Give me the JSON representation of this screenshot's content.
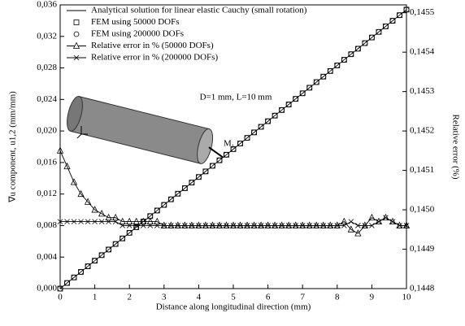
{
  "chart_data": {
    "type": "line",
    "x_label": "Distance along longitudinal direction (mm)",
    "y_label": "∇u component, u1,2 (mm/mm)",
    "y2_label": "Relative error (%)",
    "annotations": [
      "D=1 mm, L=10 mm",
      "M₁"
    ],
    "x": [
      0,
      0.2,
      0.4,
      0.6,
      0.8,
      1,
      1.2,
      1.4,
      1.6,
      1.8,
      2,
      2.2,
      2.4,
      2.6,
      2.8,
      3,
      3.2,
      3.4,
      3.6,
      3.8,
      4,
      4.2,
      4.4,
      4.6,
      4.8,
      5,
      5.2,
      5.4,
      5.6,
      5.8,
      6,
      6.2,
      6.4,
      6.6,
      6.8,
      7,
      7.2,
      7.4,
      7.6,
      7.8,
      8,
      8.2,
      8.4,
      8.6,
      8.8,
      9,
      9.2,
      9.4,
      9.6,
      9.8,
      10
    ],
    "series": [
      {
        "name": "Analytical solution for linear elastic Cauchy (small rotation)",
        "color": "#000000",
        "line": true,
        "marker": "none",
        "values": [
          0,
          0.00071,
          0.00142,
          0.00212,
          0.00283,
          0.00354,
          0.00425,
          0.00496,
          0.00566,
          0.00637,
          0.00708,
          0.00779,
          0.0085,
          0.0092,
          0.00991,
          0.01062,
          0.01133,
          0.01204,
          0.01274,
          0.01345,
          0.01416,
          0.01487,
          0.01558,
          0.01628,
          0.01699,
          0.0177,
          0.01841,
          0.01912,
          0.01982,
          0.02053,
          0.02124,
          0.02195,
          0.02266,
          0.02336,
          0.02407,
          0.02478,
          0.02549,
          0.0262,
          0.0269,
          0.02761,
          0.02832,
          0.02903,
          0.02974,
          0.03044,
          0.03115,
          0.03186,
          0.03257,
          0.03328,
          0.03398,
          0.03469,
          0.0354
        ]
      },
      {
        "name": "FEM using 50000 DOFs",
        "color": "#000000",
        "line": false,
        "marker": "square",
        "values": [
          0,
          0.00071,
          0.00142,
          0.00212,
          0.00283,
          0.00354,
          0.00425,
          0.00496,
          0.00566,
          0.00637,
          0.00708,
          0.00779,
          0.0085,
          0.0092,
          0.00991,
          0.01062,
          0.01133,
          0.01204,
          0.01274,
          0.01345,
          0.01416,
          0.01487,
          0.01558,
          0.01628,
          0.01699,
          0.0177,
          0.01841,
          0.01912,
          0.01982,
          0.02053,
          0.02124,
          0.02195,
          0.02266,
          0.02336,
          0.02407,
          0.02478,
          0.02549,
          0.0262,
          0.0269,
          0.02761,
          0.02832,
          0.02903,
          0.02974,
          0.03044,
          0.03115,
          0.03186,
          0.03257,
          0.03328,
          0.03398,
          0.03469,
          0.0354
        ]
      },
      {
        "name": "FEM using 200000 DOFs",
        "color": "#000000",
        "line": false,
        "marker": "circle",
        "values": [
          0,
          0.00071,
          0.00142,
          0.00212,
          0.00283,
          0.00354,
          0.00425,
          0.00496,
          0.00566,
          0.00637,
          0.00708,
          0.00779,
          0.0085,
          0.0092,
          0.00991,
          0.01062,
          0.01133,
          0.01204,
          0.01274,
          0.01345,
          0.01416,
          0.01487,
          0.01558,
          0.01628,
          0.01699,
          0.0177,
          0.01841,
          0.01912,
          0.01982,
          0.02053,
          0.02124,
          0.02195,
          0.02266,
          0.02336,
          0.02407,
          0.02478,
          0.02549,
          0.0262,
          0.0269,
          0.02761,
          0.02832,
          0.02903,
          0.02974,
          0.03044,
          0.03115,
          0.03186,
          0.03257,
          0.03328,
          0.03398,
          0.03469,
          0.0354
        ]
      },
      {
        "name": "Relative error in % (50000 DOFs)",
        "color": "#000000",
        "line": true,
        "marker": "triangle",
        "axis": "y2",
        "values": [
          0.14515,
          0.14511,
          0.14507,
          0.14504,
          0.14502,
          0.145,
          0.14499,
          0.14498,
          0.14498,
          0.14497,
          0.14497,
          0.14497,
          0.14497,
          0.14497,
          0.14497,
          0.14496,
          0.14496,
          0.14496,
          0.14496,
          0.14496,
          0.14496,
          0.14496,
          0.14496,
          0.14496,
          0.14496,
          0.14496,
          0.14496,
          0.14496,
          0.14496,
          0.14496,
          0.14496,
          0.14496,
          0.14496,
          0.14496,
          0.14496,
          0.14496,
          0.14496,
          0.14496,
          0.14496,
          0.14496,
          0.14496,
          0.14497,
          0.14495,
          0.14494,
          0.14496,
          0.14498,
          0.14497,
          0.14498,
          0.14497,
          0.14496,
          0.14496
        ]
      },
      {
        "name": "Relative error in % (200000 DOFs)",
        "color": "#000000",
        "line": true,
        "marker": "cross",
        "axis": "y2",
        "values": [
          0.14497,
          0.14497,
          0.14497,
          0.14497,
          0.14497,
          0.14497,
          0.14497,
          0.14497,
          0.14497,
          0.14496,
          0.14496,
          0.14496,
          0.14496,
          0.14496,
          0.14496,
          0.14496,
          0.14496,
          0.14496,
          0.14496,
          0.14496,
          0.14496,
          0.14496,
          0.14496,
          0.14496,
          0.14496,
          0.14496,
          0.14496,
          0.14496,
          0.14496,
          0.14496,
          0.14496,
          0.14496,
          0.14496,
          0.14496,
          0.14496,
          0.14496,
          0.14496,
          0.14496,
          0.14496,
          0.14496,
          0.14496,
          0.14496,
          0.14497,
          0.14496,
          0.14496,
          0.14496,
          0.14497,
          0.14498,
          0.14497,
          0.14496,
          0.14496
        ]
      }
    ],
    "xlim": [
      0,
      10
    ],
    "xticks": [
      0,
      1,
      2,
      3,
      4,
      5,
      6,
      7,
      8,
      9,
      10
    ],
    "ylim": [
      0,
      0.036
    ],
    "yticks": [
      {
        "value": 0,
        "label": "0,000"
      },
      {
        "value": 0.004,
        "label": "0,004"
      },
      {
        "value": 0.008,
        "label": "0,008"
      },
      {
        "value": 0.012,
        "label": "0,012"
      },
      {
        "value": 0.016,
        "label": "0,016"
      },
      {
        "value": 0.02,
        "label": "0,020"
      },
      {
        "value": 0.024,
        "label": "0,024"
      },
      {
        "value": 0.028,
        "label": "0,028"
      },
      {
        "value": 0.032,
        "label": "0,032"
      },
      {
        "value": 0.036,
        "label": "0,036"
      }
    ],
    "y2lim": [
      0.1448,
      0.14552
    ],
    "y2ticks": [
      {
        "value": 0.1448,
        "label": "0,1448"
      },
      {
        "value": 0.1449,
        "label": "0,1449"
      },
      {
        "value": 0.145,
        "label": "0,1450"
      },
      {
        "value": 0.1451,
        "label": "0,1451"
      },
      {
        "value": 0.1452,
        "label": "0,1452"
      },
      {
        "value": 0.1453,
        "label": "0,1453"
      },
      {
        "value": 0.1454,
        "label": "0,1454"
      },
      {
        "value": 0.1455,
        "label": "0,1455"
      }
    ],
    "grid": false,
    "legend": "upper left"
  }
}
